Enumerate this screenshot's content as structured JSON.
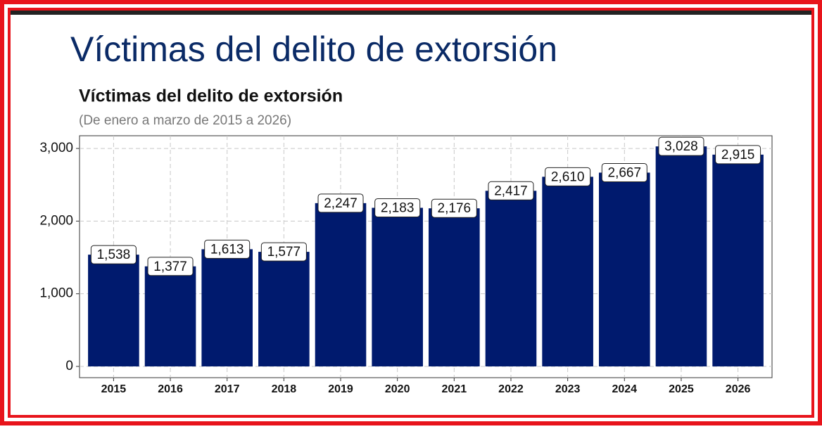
{
  "slide": {
    "title": "Víctimas del delito de extorsión"
  },
  "chart_data": {
    "type": "bar",
    "title": "Víctimas del delito de extorsión",
    "subtitle": "(De enero a marzo de 2015 a 2026)",
    "categories": [
      "2015",
      "2016",
      "2017",
      "2018",
      "2019",
      "2020",
      "2021",
      "2022",
      "2023",
      "2024",
      "2025",
      "2026"
    ],
    "values": [
      1538,
      1377,
      1613,
      1577,
      2247,
      2183,
      2176,
      2417,
      2610,
      2667,
      3028,
      2915
    ],
    "value_labels": [
      "1,538",
      "1,377",
      "1,613",
      "1,577",
      "2,247",
      "2,183",
      "2,176",
      "2,417",
      "2,610",
      "2,667",
      "3,028",
      "2,915"
    ],
    "color": "#001a6e",
    "ylim": [
      -155,
      3175
    ],
    "yticks": [
      0,
      {
        "value": 1000,
        "label": "1,000"
      },
      {
        "value": 2000,
        "label": "2,000"
      },
      {
        "value": 3000,
        "label": "3,000"
      }
    ],
    "grid": true
  }
}
